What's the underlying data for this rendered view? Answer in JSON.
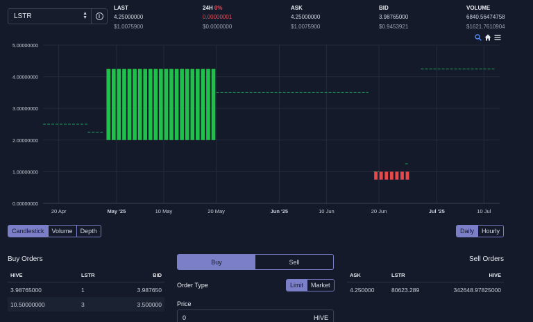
{
  "pair_select": {
    "value": "LSTR",
    "info_symbol": "i"
  },
  "stats": [
    {
      "label": "LAST",
      "pct": "",
      "value": "4.25000000",
      "usd": "$1.0075900"
    },
    {
      "label": "24H",
      "pct": "0%",
      "value": "0.00000001",
      "usd": "$0.0000000"
    },
    {
      "label": "ASK",
      "pct": "",
      "value": "4.25000000",
      "usd": "$1.0075900"
    },
    {
      "label": "BID",
      "pct": "",
      "value": "3.98765000",
      "usd": "$0.9453921"
    },
    {
      "label": "VOLUME",
      "pct": "",
      "value": "6840.56474758",
      "usd": "$1621.7610904"
    }
  ],
  "chart_tools": [
    "zoom-icon",
    "home-icon",
    "menu-icon"
  ],
  "chart_data": {
    "type": "candlestick",
    "ylim": [
      0,
      5
    ],
    "y_ticks": [
      "0.00000000",
      "1.00000000",
      "2.00000000",
      "3.00000000",
      "4.00000000",
      "5.00000000"
    ],
    "x_ticks": [
      {
        "label": "20 Apr",
        "bold": false,
        "day": 0
      },
      {
        "label": "May '25",
        "bold": true,
        "day": 11
      },
      {
        "label": "10 May",
        "bold": false,
        "day": 20
      },
      {
        "label": "20 May",
        "bold": false,
        "day": 30
      },
      {
        "label": "Jun '25",
        "bold": true,
        "day": 42
      },
      {
        "label": "10 Jun",
        "bold": false,
        "day": 51
      },
      {
        "label": "20 Jun",
        "bold": false,
        "day": 61
      },
      {
        "label": "Jul '25",
        "bold": true,
        "day": 72
      },
      {
        "label": "10 Jul",
        "bold": false,
        "day": 81
      }
    ],
    "x_range_days": [
      -3,
      84
    ],
    "flat_segments": [
      {
        "from": -3,
        "to": 5.5,
        "value": 2.5
      },
      {
        "from": 5.5,
        "to": 8.5,
        "value": 2.25
      },
      {
        "from": 30,
        "to": 59,
        "value": 3.5
      },
      {
        "from": 60,
        "to": 61,
        "value": 1.0
      },
      {
        "from": 66,
        "to": 66.5,
        "value": 1.25
      },
      {
        "from": 69,
        "to": 83,
        "value": 4.25
      }
    ],
    "up_candles": {
      "from_day": 9,
      "to_day": 29,
      "open": 2.0,
      "close": 4.25,
      "color": "#1fc14a"
    },
    "down_candles": {
      "from_day": 60,
      "to_day": 66,
      "open": 1.0,
      "close": 0.75,
      "color": "#e84848"
    },
    "grid": true
  },
  "chart_type_tabs": [
    {
      "label": "Candlestick",
      "active": true
    },
    {
      "label": "Volume",
      "active": false
    },
    {
      "label": "Depth",
      "active": false
    }
  ],
  "interval_tabs": [
    {
      "label": "Daily",
      "active": true
    },
    {
      "label": "Hourly",
      "active": false
    }
  ],
  "buy_orders": {
    "title": "Buy Orders",
    "columns": [
      "HIVE",
      "LSTR",
      "BID"
    ],
    "rows": [
      [
        "3.98765000",
        "1",
        "3.987650"
      ],
      [
        "10.50000000",
        "3",
        "3.500000"
      ]
    ]
  },
  "sell_orders": {
    "title": "Sell Orders",
    "columns": [
      "ASK",
      "LSTR",
      "HIVE"
    ],
    "rows": [
      [
        "4.250000",
        "80623.289",
        "342648.97825000"
      ]
    ]
  },
  "order_form": {
    "buy_label": "Buy",
    "sell_label": "Sell",
    "order_type_label": "Order Type",
    "limit_label": "Limit",
    "market_label": "Market",
    "price_label": "Price",
    "price_value": "0",
    "price_unit": "HIVE"
  },
  "colors": {
    "background": "#141a2a",
    "accent": "#7b7fc7",
    "up": "#1fc14a",
    "down": "#e84848",
    "line": "#1f9e5a"
  }
}
